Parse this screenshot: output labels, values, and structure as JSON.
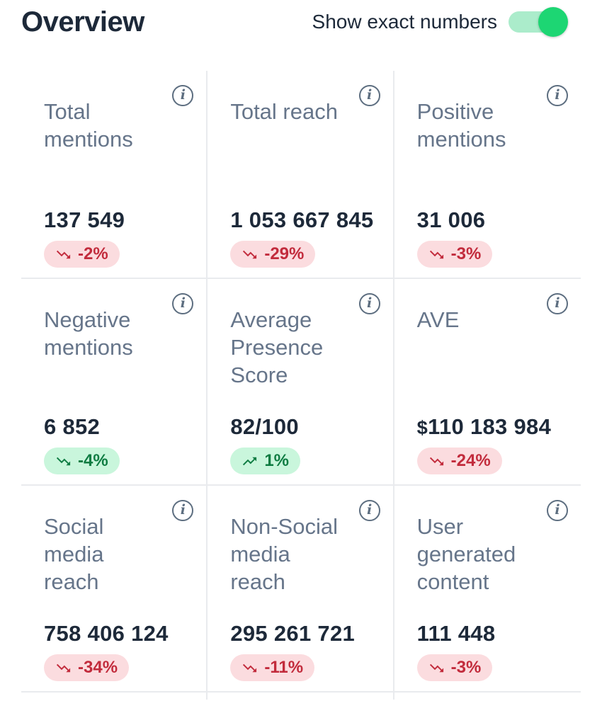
{
  "header": {
    "title": "Overview",
    "toggle": {
      "label": "Show exact numbers",
      "state": "on"
    }
  },
  "icons": {
    "info": "info-icon",
    "trend_down": "trending-down-icon",
    "trend_up": "trending-up-icon",
    "toggle_knob": "toggle-knob"
  },
  "colors": {
    "text_primary": "#1d2939",
    "text_secondary": "#66758a",
    "divider": "#e9ebee",
    "negative_text": "#c22b3c",
    "negative_bg": "#fbdcdf",
    "positive_text": "#0e7c42",
    "positive_bg": "#c9f6dc",
    "toggle_track": "#abeccb",
    "toggle_knob": "#1dd673",
    "info_icon": "#5d6e80"
  },
  "cards": [
    {
      "label": "Total\nmentions",
      "value_prefix": "",
      "value": "137 549",
      "change": "-2%",
      "trend": "down",
      "tone": "negative"
    },
    {
      "label": "Total reach",
      "value_prefix": "",
      "value": "1 053 667 845",
      "change": "-29%",
      "trend": "down",
      "tone": "negative"
    },
    {
      "label": "Positive\nmentions",
      "value_prefix": "",
      "value": "31 006",
      "change": "-3%",
      "trend": "down",
      "tone": "negative"
    },
    {
      "label": "Negative\nmentions",
      "value_prefix": "",
      "value": "6 852",
      "change": "-4%",
      "trend": "down",
      "tone": "positive"
    },
    {
      "label": "Average\nPresence\nScore",
      "value_prefix": "",
      "value": "82/100",
      "change": "1%",
      "trend": "up",
      "tone": "positive"
    },
    {
      "label": "AVE",
      "value_prefix": "$",
      "value": "110 183 984",
      "change": "-24%",
      "trend": "down",
      "tone": "negative"
    },
    {
      "label": "Social\nmedia\nreach",
      "value_prefix": "",
      "value": "758 406 124",
      "change": "-34%",
      "trend": "down",
      "tone": "negative"
    },
    {
      "label": "Non-Social\nmedia\nreach",
      "value_prefix": "",
      "value": "295 261 721",
      "change": "-11%",
      "trend": "down",
      "tone": "negative"
    },
    {
      "label": "User\ngenerated\ncontent",
      "value_prefix": "",
      "value": "111 448",
      "change": "-3%",
      "trend": "down",
      "tone": "negative"
    }
  ]
}
